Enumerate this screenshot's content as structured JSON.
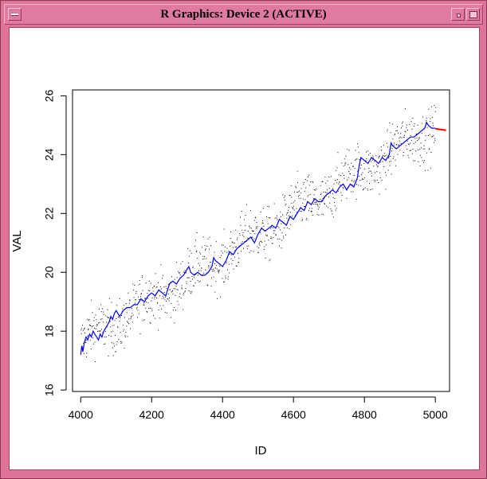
{
  "window": {
    "title": "R Graphics: Device 2 (ACTIVE)"
  },
  "chart_data": {
    "type": "scatter",
    "title": "",
    "xlabel": "ID",
    "ylabel": "VAL",
    "xlim": [
      3977,
      5040
    ],
    "ylim": [
      15.95,
      26.2
    ],
    "xticks": [
      4000,
      4200,
      4400,
      4600,
      4800,
      5000
    ],
    "yticks": [
      16,
      18,
      20,
      22,
      24,
      26
    ],
    "grid": false,
    "legend": "none",
    "series": [
      {
        "kind": "points",
        "color": "#000000",
        "x_start": 4000,
        "x_end": 5000,
        "trend_y_start": 17.6,
        "trend_y_end": 25.0,
        "spread": 0.45
      },
      {
        "kind": "line",
        "color": "#0000ff",
        "x": [
          4000,
          4003,
          4006,
          4010,
          4015,
          4020,
          4025,
          4030,
          4035,
          4040,
          4045,
          4050,
          4055,
          4060,
          4065,
          4070,
          4075,
          4080,
          4085,
          4090,
          4095,
          4100,
          4105,
          4110,
          4115,
          4120,
          4130,
          4140,
          4150,
          4160,
          4170,
          4180,
          4190,
          4200,
          4210,
          4220,
          4230,
          4240,
          4250,
          4260,
          4270,
          4280,
          4290,
          4300,
          4305,
          4310,
          4320,
          4330,
          4340,
          4350,
          4360,
          4370,
          4375,
          4380,
          4390,
          4400,
          4410,
          4420,
          4430,
          4440,
          4450,
          4460,
          4470,
          4480,
          4490,
          4500,
          4510,
          4520,
          4530,
          4540,
          4550,
          4560,
          4570,
          4580,
          4590,
          4600,
          4610,
          4620,
          4630,
          4640,
          4650,
          4660,
          4670,
          4680,
          4690,
          4700,
          4710,
          4720,
          4730,
          4740,
          4750,
          4760,
          4770,
          4780,
          4785,
          4790,
          4800,
          4810,
          4820,
          4830,
          4840,
          4850,
          4860,
          4870,
          4875,
          4880,
          4890,
          4900,
          4910,
          4920,
          4930,
          4940,
          4950,
          4960,
          4970,
          4975,
          4980,
          4990,
          5000
        ],
        "y": [
          17.2,
          17.5,
          17.3,
          17.6,
          17.8,
          17.7,
          17.9,
          17.8,
          18.0,
          17.9,
          17.8,
          17.7,
          17.9,
          17.8,
          18.0,
          18.1,
          18.2,
          18.3,
          18.5,
          18.4,
          18.6,
          18.7,
          18.6,
          18.5,
          18.6,
          18.7,
          18.8,
          18.8,
          18.9,
          18.9,
          19.1,
          19.0,
          19.2,
          19.3,
          19.2,
          19.4,
          19.3,
          19.2,
          19.6,
          19.7,
          19.6,
          19.8,
          19.9,
          20.1,
          20.2,
          20.0,
          19.9,
          20.0,
          19.9,
          19.9,
          20.0,
          20.2,
          20.5,
          20.4,
          20.3,
          20.2,
          20.4,
          20.7,
          20.6,
          20.8,
          20.9,
          21.0,
          21.1,
          21.2,
          21.0,
          21.3,
          21.5,
          21.4,
          21.5,
          21.6,
          21.5,
          21.8,
          21.7,
          21.6,
          21.9,
          21.8,
          22.0,
          22.2,
          22.1,
          22.4,
          22.3,
          22.5,
          22.4,
          22.4,
          22.6,
          22.7,
          22.8,
          22.7,
          22.9,
          23.0,
          22.8,
          23.0,
          22.9,
          23.2,
          23.6,
          23.9,
          23.8,
          23.7,
          23.9,
          23.8,
          23.7,
          23.9,
          23.8,
          24.0,
          24.4,
          24.3,
          24.2,
          24.3,
          24.4,
          24.5,
          24.6,
          24.6,
          24.7,
          24.8,
          24.9,
          25.1,
          25.0,
          24.9,
          24.9
        ]
      },
      {
        "kind": "line",
        "color": "#ff0000",
        "x": [
          5000,
          5030
        ],
        "y": [
          24.88,
          24.83
        ]
      }
    ]
  }
}
